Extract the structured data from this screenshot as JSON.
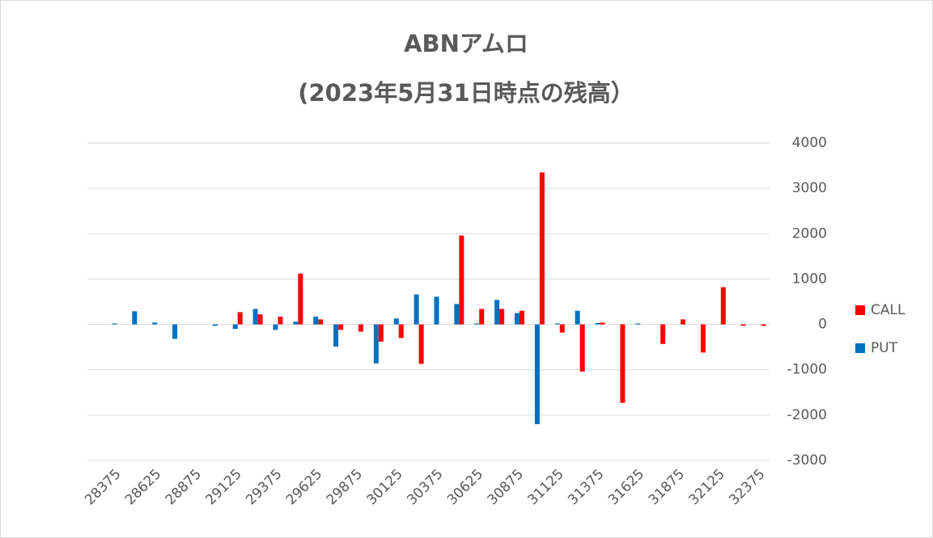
{
  "chart_data": {
    "type": "bar",
    "title": "ABNアムロ",
    "subtitle": "(2023年5月31日時点の残高）",
    "categories": [
      "28375",
      null,
      "28625",
      null,
      "28875",
      null,
      "29125",
      null,
      "29375",
      null,
      "29625",
      null,
      "29875",
      null,
      "30125",
      null,
      "30375",
      null,
      "30625",
      null,
      "30875",
      null,
      "31125",
      null,
      "31375",
      null,
      "31625",
      null,
      "31875",
      null,
      "32125",
      null,
      "32375"
    ],
    "series": [
      {
        "name": "CALL",
        "color": "#ff0000",
        "values": [
          0,
          0,
          0,
          0,
          0,
          0,
          270,
          220,
          170,
          1120,
          110,
          -120,
          -160,
          -380,
          -300,
          -870,
          0,
          1960,
          340,
          340,
          300,
          3350,
          -180,
          -1040,
          40,
          -1730,
          0,
          -430,
          110,
          -620,
          820,
          -30,
          -30
        ]
      },
      {
        "name": "PUT",
        "color": "#0070c0",
        "values": [
          20,
          290,
          40,
          -320,
          0,
          -30,
          -100,
          340,
          -120,
          60,
          170,
          -490,
          0,
          -860,
          130,
          660,
          610,
          450,
          20,
          540,
          250,
          -2200,
          20,
          300,
          30,
          0,
          20,
          0,
          0,
          0,
          0,
          0,
          0
        ]
      }
    ],
    "ylim": [
      -3000,
      4000
    ],
    "yticks": [
      -3000,
      -2000,
      -1000,
      0,
      1000,
      2000,
      3000,
      4000
    ],
    "grid": true,
    "legend": "right"
  }
}
